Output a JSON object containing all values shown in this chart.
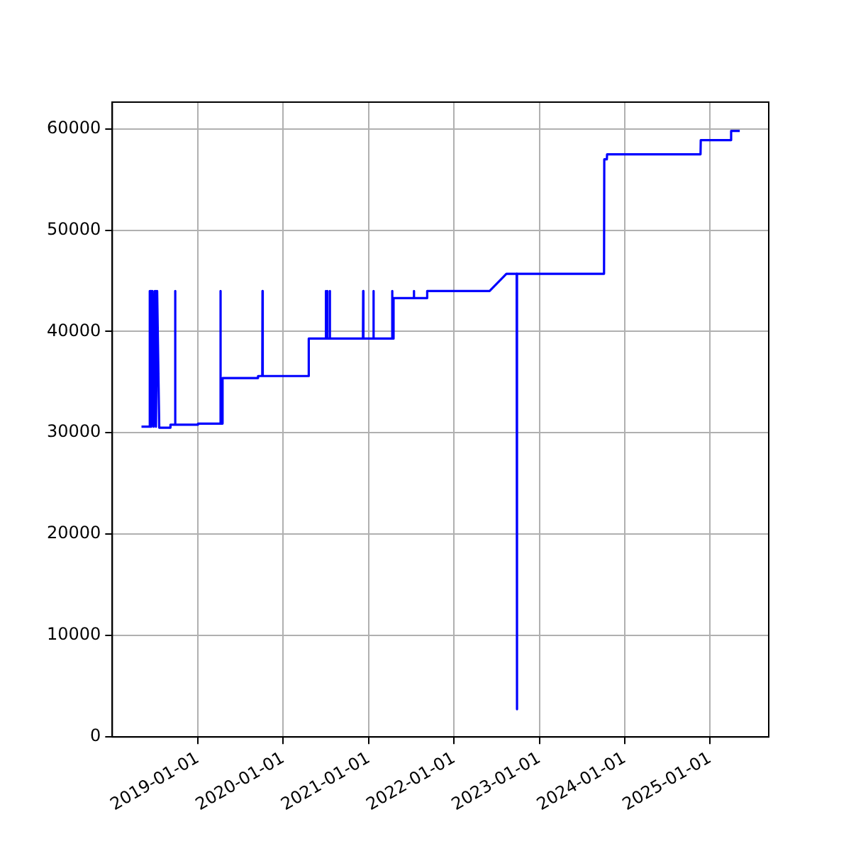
{
  "chart_data": {
    "type": "line",
    "color": "#0000ff",
    "grid": true,
    "legend": false,
    "marker": "none",
    "line_style": "solid",
    "xlim": [
      "2017-12-30",
      "2025-09-09"
    ],
    "xticks": [
      "2019-01-01",
      "2020-01-01",
      "2021-01-01",
      "2022-01-01",
      "2023-01-01",
      "2024-01-01",
      "2025-01-01"
    ],
    "ylim": [
      -50,
      62650
    ],
    "yticks": [
      0,
      10000,
      20000,
      30000,
      40000,
      50000,
      60000
    ],
    "x": [
      "2018-05-04",
      "2018-06-07",
      "2018-06-08",
      "2018-06-09",
      "2018-06-12",
      "2018-06-15",
      "2018-06-20",
      "2018-06-25",
      "2018-06-30",
      "2018-07-05",
      "2018-07-10",
      "2018-07-19",
      "2018-09-04",
      "2018-09-05",
      "2018-09-24",
      "2018-09-25",
      "2018-09-26",
      "2018-12-31",
      "2019-01-01",
      "2019-04-06",
      "2019-04-07",
      "2019-04-08",
      "2019-04-15",
      "2019-04-16",
      "2019-09-14",
      "2019-09-15",
      "2019-10-03",
      "2019-10-04",
      "2019-10-05",
      "2020-04-18",
      "2020-04-19",
      "2020-06-30",
      "2020-07-01",
      "2020-07-02",
      "2020-07-06",
      "2020-07-07",
      "2020-07-08",
      "2020-07-17",
      "2020-07-18",
      "2020-07-19",
      "2020-12-07",
      "2020-12-08",
      "2020-12-09",
      "2021-01-20",
      "2021-01-21",
      "2021-01-22",
      "2021-04-10",
      "2021-04-11",
      "2021-04-12",
      "2021-04-16",
      "2021-04-17",
      "2021-07-12",
      "2021-07-13",
      "2021-07-14",
      "2021-09-07",
      "2021-09-08",
      "2022-06-02",
      "2022-08-13",
      "2022-09-26",
      "2022-09-27",
      "2022-09-28",
      "2023-10-05",
      "2023-10-06",
      "2023-10-17",
      "2023-10-18",
      "2024-11-21",
      "2024-11-22",
      "2025-03-31",
      "2025-04-01",
      "2025-05-08"
    ],
    "values": [
      30600,
      30600,
      44000,
      30600,
      44000,
      30600,
      44000,
      30600,
      44000,
      30600,
      44000,
      30500,
      30500,
      30800,
      30800,
      44000,
      30800,
      30800,
      30900,
      30900,
      44000,
      30900,
      30900,
      35400,
      35400,
      35600,
      35600,
      44000,
      35600,
      35600,
      39300,
      39300,
      44000,
      39300,
      39300,
      44000,
      39300,
      39300,
      44000,
      39300,
      39300,
      44000,
      39300,
      39300,
      44000,
      39300,
      39300,
      44000,
      39300,
      39300,
      43300,
      43300,
      44000,
      43300,
      43300,
      44000,
      44000,
      45700,
      45700,
      2700,
      45700,
      45700,
      57000,
      57000,
      57500,
      57500,
      58900,
      58900,
      59800,
      59800
    ]
  }
}
